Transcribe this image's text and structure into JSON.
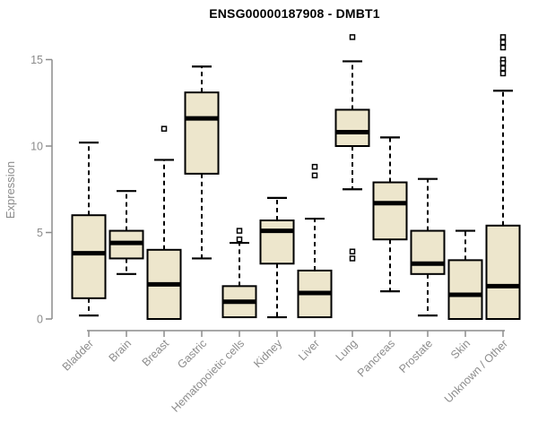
{
  "figure": {
    "title": "ENSG00000187908 - DMBT1"
  },
  "colors": {
    "background": "#FFFFFF",
    "box_fill": "#EDE6CC",
    "box_stroke": "#000000",
    "median_color": "#000000",
    "whisker_color": "#000000",
    "outlier_color": "#000000",
    "axis_color": "#8C8C8C",
    "axis_text_color": "#8C8C8C",
    "title_color": "#000000"
  },
  "chart_data": {
    "type": "boxplot",
    "title": "ENSG00000187908 - DMBT1",
    "xlabel": "",
    "ylabel": "Expression",
    "ylim": [
      0,
      16.5
    ],
    "yticks": [
      0,
      5,
      10,
      15
    ],
    "grid": false,
    "legend": null,
    "categories": [
      "Bladder",
      "Brain",
      "Breast",
      "Gastric",
      "Hematopoietic cells",
      "Kidney",
      "Liver",
      "Lung",
      "Pancreas",
      "Prostate",
      "Skin",
      "Unknown / Other"
    ],
    "boxes": [
      {
        "whisker_low": 0.2,
        "q1": 1.2,
        "median": 3.8,
        "q3": 6.0,
        "whisker_high": 10.2,
        "outliers": []
      },
      {
        "whisker_low": 2.6,
        "q1": 3.5,
        "median": 4.4,
        "q3": 5.1,
        "whisker_high": 7.4,
        "outliers": []
      },
      {
        "whisker_low": 0.0,
        "q1": 0.0,
        "median": 2.0,
        "q3": 4.0,
        "whisker_high": 9.2,
        "outliers": [
          11.0
        ]
      },
      {
        "whisker_low": 3.5,
        "q1": 8.4,
        "median": 11.6,
        "q3": 13.1,
        "whisker_high": 14.6,
        "outliers": []
      },
      {
        "whisker_low": 0.1,
        "q1": 0.1,
        "median": 1.0,
        "q3": 1.9,
        "whisker_high": 4.4,
        "outliers": [
          5.1,
          4.6
        ]
      },
      {
        "whisker_low": 0.1,
        "q1": 3.2,
        "median": 5.1,
        "q3": 5.7,
        "whisker_high": 7.0,
        "outliers": []
      },
      {
        "whisker_low": 0.1,
        "q1": 0.1,
        "median": 1.5,
        "q3": 2.8,
        "whisker_high": 5.8,
        "outliers": [
          8.8,
          8.3
        ]
      },
      {
        "whisker_low": 7.5,
        "q1": 10.0,
        "median": 10.8,
        "q3": 12.1,
        "whisker_high": 14.9,
        "outliers": [
          16.3,
          3.9,
          3.5
        ]
      },
      {
        "whisker_low": 1.6,
        "q1": 4.6,
        "median": 6.7,
        "q3": 7.9,
        "whisker_high": 10.5,
        "outliers": []
      },
      {
        "whisker_low": 0.2,
        "q1": 2.6,
        "median": 3.2,
        "q3": 5.1,
        "whisker_high": 8.1,
        "outliers": []
      },
      {
        "whisker_low": 0.0,
        "q1": 0.0,
        "median": 1.4,
        "q3": 3.4,
        "whisker_high": 5.1,
        "outliers": []
      },
      {
        "whisker_low": 0.0,
        "q1": 0.0,
        "median": 1.9,
        "q3": 5.4,
        "whisker_high": 13.2,
        "outliers": [
          16.3,
          16.0,
          15.7,
          15.0,
          14.8,
          14.5,
          14.2
        ]
      }
    ]
  }
}
